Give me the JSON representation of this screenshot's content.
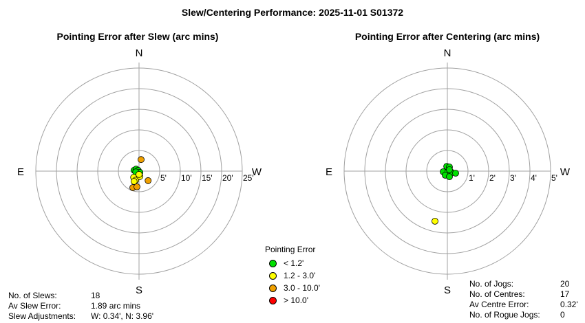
{
  "title": "Slew/Centering Performance: 2025-11-01 S01372",
  "chart_data": [
    {
      "type": "scatter",
      "subtype": "polar",
      "title": "Pointing Error after Slew (arc mins)",
      "directions": {
        "n": "N",
        "s": "S",
        "e": "E",
        "w": "W"
      },
      "ring_labels": [
        "5'",
        "10'",
        "15'",
        "20'",
        "25'"
      ],
      "rmax": 25,
      "points": [
        {
          "w": -1.2,
          "n": 0.2,
          "c": "g"
        },
        {
          "w": -0.7,
          "n": 0.5,
          "c": "g"
        },
        {
          "w": -0.2,
          "n": 0.2,
          "c": "g"
        },
        {
          "w": 0.2,
          "n": -0.3,
          "c": "g"
        },
        {
          "w": -0.8,
          "n": -0.2,
          "c": "g"
        },
        {
          "w": -1.3,
          "n": -1.5,
          "c": "y"
        },
        {
          "w": -0.8,
          "n": -2.2,
          "c": "y"
        },
        {
          "w": 0.2,
          "n": -1.3,
          "c": "y"
        },
        {
          "w": 0.0,
          "n": -0.8,
          "c": "y"
        },
        {
          "w": -1.2,
          "n": -2.5,
          "c": "y"
        },
        {
          "w": 0.5,
          "n": 2.8,
          "c": "o"
        },
        {
          "w": 2.2,
          "n": -2.3,
          "c": "o"
        },
        {
          "w": -1.5,
          "n": -4.0,
          "c": "o"
        },
        {
          "w": -0.5,
          "n": -3.8,
          "c": "o"
        }
      ]
    },
    {
      "type": "scatter",
      "subtype": "polar",
      "title": "Pointing Error after Centering (arc mins)",
      "directions": {
        "n": "N",
        "s": "S",
        "e": "E",
        "w": "W"
      },
      "ring_labels": [
        "1'",
        "2'",
        "3'",
        "4'",
        "5'"
      ],
      "rmax": 5,
      "points": [
        {
          "w": -0.03,
          "n": 0.23,
          "c": "g"
        },
        {
          "w": 0.1,
          "n": 0.2,
          "c": "g"
        },
        {
          "w": -0.2,
          "n": -0.03,
          "c": "g"
        },
        {
          "w": 0.03,
          "n": -0.03,
          "c": "g"
        },
        {
          "w": 0.23,
          "n": -0.07,
          "c": "g"
        },
        {
          "w": 0.4,
          "n": -0.1,
          "c": "g"
        },
        {
          "w": -0.1,
          "n": -0.2,
          "c": "g"
        },
        {
          "w": 0.1,
          "n": -0.27,
          "c": "g"
        },
        {
          "w": 0.1,
          "n": 0.07,
          "c": "g"
        },
        {
          "w": -0.6,
          "n": -2.43,
          "c": "y"
        }
      ]
    }
  ],
  "colors": {
    "g": "#00e000",
    "y": "#ffff00",
    "o": "#f0a000",
    "r": "#ff0000",
    "grid": "#a0a0a0"
  },
  "legend": {
    "title": "Pointing Error",
    "items": [
      {
        "label": "< 1.2'",
        "color": "#00e000"
      },
      {
        "label": "1.2 - 3.0'",
        "color": "#ffff00"
      },
      {
        "label": "3.0 - 10.0'",
        "color": "#f0a000"
      },
      {
        "label": "> 10.0'",
        "color": "#ff0000"
      }
    ]
  },
  "slew_stats": [
    {
      "label": "No. of Slews:",
      "value": "18"
    },
    {
      "label": "Av Slew Error:",
      "value": "1.89 arc mins"
    },
    {
      "label": "Slew Adjustments:",
      "value": "W: 0.34', N: 3.96'"
    }
  ],
  "centre_stats": [
    {
      "label": "No. of Jogs:",
      "value": "20"
    },
    {
      "label": "No. of Centres:",
      "value": "17"
    },
    {
      "label": "Av Centre Error:",
      "value": "0.32'"
    },
    {
      "label": "No. of Rogue Jogs:",
      "value": "0"
    }
  ]
}
